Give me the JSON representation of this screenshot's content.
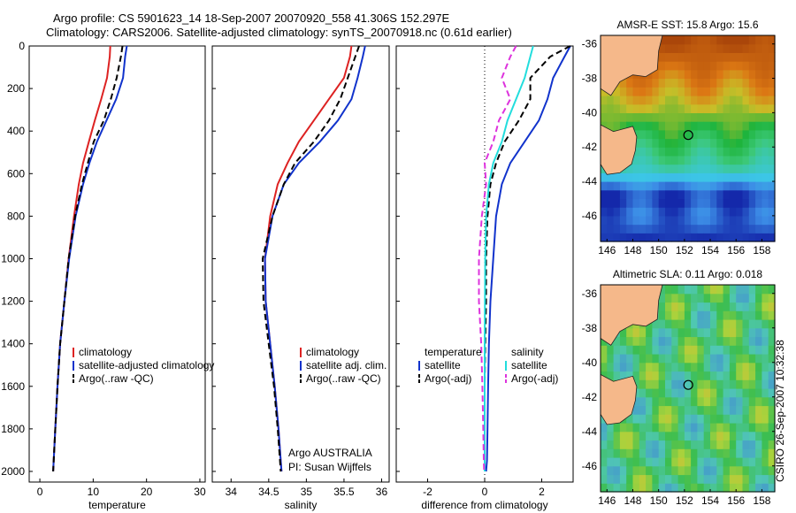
{
  "header": {
    "line1": "Argo profile: CS 5901623_14 18-Sep-2007 20070920_558 41.306S 152.297E",
    "line2": "Climatology: CARS2006. Satellite-adjusted climatology: synTS_20070918.nc (0.61d earlier)"
  },
  "stamp": "CSIRO 26-Sep-2007 10:32:38",
  "colors": {
    "climatology": "#dd2222",
    "satellite": "#1133cc",
    "argo": "#000000",
    "salinity_sat": "#22dddd",
    "salinity_argo": "#dd33dd",
    "land": "#f5b88a"
  },
  "chart_data": [
    {
      "type": "line",
      "xlabel": "temperature",
      "ylabel": "",
      "xlim": [
        -2,
        31
      ],
      "ylim": [
        2050,
        0
      ],
      "xticks": [
        0,
        10,
        20,
        30
      ],
      "yticks": [
        0,
        200,
        400,
        600,
        800,
        1000,
        1200,
        1400,
        1600,
        1800,
        2000
      ],
      "legend": [
        "climatology",
        "satellite-adjusted climatology",
        "Argo(..raw -QC)"
      ],
      "series": [
        {
          "name": "climatology",
          "style": "solid",
          "color": "#dd2222",
          "x": [
            13.2,
            13.1,
            12.6,
            11.5,
            10.3,
            9.2,
            8.1,
            7.3,
            6.4,
            5.4,
            4.6,
            3.8,
            3.3,
            2.9,
            2.6,
            2.5
          ],
          "y": [
            0,
            50,
            150,
            250,
            350,
            450,
            550,
            650,
            800,
            1000,
            1200,
            1400,
            1600,
            1800,
            1950,
            2000
          ]
        },
        {
          "name": "satellite-adjusted climatology",
          "style": "solid",
          "color": "#1133cc",
          "x": [
            16.3,
            16.0,
            15.6,
            14.3,
            12.5,
            10.7,
            9.3,
            8.1,
            6.7,
            5.5,
            4.6,
            3.8,
            3.3,
            2.9,
            2.6,
            2.5
          ],
          "y": [
            0,
            50,
            150,
            250,
            350,
            450,
            550,
            650,
            800,
            1000,
            1200,
            1400,
            1600,
            1800,
            1950,
            2000
          ]
        },
        {
          "name": "Argo(..raw -QC)",
          "style": "dashed",
          "color": "#000000",
          "x": [
            15.5,
            15.2,
            14.4,
            13.3,
            12.0,
            10.1,
            9.0,
            7.9,
            6.6,
            5.4,
            4.6,
            3.8,
            3.3,
            2.9,
            2.6,
            2.5
          ],
          "y": [
            0,
            50,
            150,
            250,
            350,
            450,
            550,
            650,
            800,
            1000,
            1200,
            1400,
            1600,
            1800,
            1950,
            2000
          ]
        }
      ]
    },
    {
      "type": "line",
      "xlabel": "salinity",
      "ylabel": "",
      "xlim": [
        33.75,
        36.1
      ],
      "ylim": [
        2050,
        0
      ],
      "xticks": [
        34,
        34.5,
        35,
        35.5,
        36
      ],
      "legend": [
        "climatology",
        "satellite adj. clim.",
        "Argo(..raw -QC)"
      ],
      "annotation": [
        "Argo AUSTRALIA",
        "PI: Susan Wijffels"
      ],
      "series": [
        {
          "name": "climatology",
          "style": "solid",
          "color": "#dd2222",
          "x": [
            35.6,
            35.58,
            35.5,
            35.3,
            35.1,
            34.9,
            34.75,
            34.62,
            34.52,
            34.45,
            34.46,
            34.52,
            34.58,
            34.63,
            34.66,
            34.67
          ],
          "y": [
            0,
            50,
            150,
            250,
            350,
            450,
            550,
            650,
            800,
            1000,
            1200,
            1400,
            1600,
            1800,
            1950,
            2000
          ]
        },
        {
          "name": "satellite adj. clim.",
          "style": "solid",
          "color": "#1133cc",
          "x": [
            35.78,
            35.75,
            35.68,
            35.6,
            35.42,
            35.18,
            34.9,
            34.7,
            34.55,
            34.45,
            34.46,
            34.52,
            34.58,
            34.63,
            34.66,
            34.67
          ],
          "y": [
            0,
            50,
            150,
            250,
            350,
            450,
            550,
            650,
            800,
            1000,
            1200,
            1400,
            1600,
            1800,
            1950,
            2000
          ]
        },
        {
          "name": "Argo(..raw -QC)",
          "style": "dashed",
          "color": "#000000",
          "x": [
            35.7,
            35.65,
            35.55,
            35.45,
            35.3,
            35.1,
            34.85,
            34.7,
            34.55,
            34.42,
            34.43,
            34.5,
            34.57,
            34.62,
            34.65,
            34.66
          ],
          "y": [
            0,
            50,
            150,
            250,
            350,
            450,
            550,
            650,
            800,
            1000,
            1200,
            1400,
            1600,
            1800,
            1950,
            2000
          ]
        }
      ]
    },
    {
      "type": "line",
      "xlabel": "difference from climatology",
      "ylabel": "",
      "xlim": [
        -3.1,
        3.1
      ],
      "ylim": [
        2050,
        0
      ],
      "xticks": [
        -2,
        0,
        2
      ],
      "legend_left_title": "temperature",
      "legend_right_title": "salinity",
      "legend": [
        "satellite",
        "Argo(-adj)",
        "satellite",
        "Argo(-adj)"
      ],
      "series": [
        {
          "name": "satellite",
          "group": "temperature",
          "style": "solid",
          "color": "#1133cc",
          "x": [
            3.0,
            2.8,
            2.4,
            2.2,
            1.9,
            1.4,
            0.9,
            0.6,
            0.4,
            0.3,
            0.2,
            0.15,
            0.12,
            0.1,
            0.08,
            0.05
          ],
          "y": [
            0,
            50,
            150,
            250,
            350,
            450,
            550,
            650,
            800,
            1000,
            1200,
            1400,
            1600,
            1800,
            1950,
            2000
          ]
        },
        {
          "name": "Argo(-adj)",
          "group": "temperature",
          "style": "dashed",
          "color": "#000000",
          "x": [
            3.0,
            2.3,
            1.6,
            1.6,
            1.2,
            0.7,
            0.4,
            0.2,
            0.1,
            0.05,
            0.05,
            0.02,
            0.0,
            0.0,
            0.0,
            0.0
          ],
          "y": [
            0,
            50,
            150,
            250,
            350,
            450,
            550,
            650,
            800,
            1000,
            1200,
            1400,
            1600,
            1800,
            1950,
            2000
          ]
        },
        {
          "name": "satellite",
          "group": "salinity",
          "style": "solid",
          "color": "#22dddd",
          "x": [
            1.7,
            1.6,
            1.4,
            1.1,
            0.8,
            0.6,
            0.3,
            0.15,
            0.05,
            0.02,
            0.01,
            0.0,
            0.0,
            0.0,
            0.0,
            0.0
          ],
          "y": [
            0,
            50,
            150,
            250,
            350,
            450,
            550,
            650,
            800,
            1000,
            1200,
            1400,
            1600,
            1800,
            1950,
            2000
          ]
        },
        {
          "name": "Argo(-adj)",
          "group": "salinity",
          "style": "dashed",
          "color": "#dd33dd",
          "x": [
            1.1,
            0.9,
            0.6,
            0.9,
            0.5,
            0.3,
            0.0,
            0.05,
            -0.1,
            -0.2,
            -0.2,
            -0.12,
            -0.08,
            -0.05,
            -0.03,
            -0.02
          ],
          "y": [
            0,
            50,
            150,
            250,
            350,
            450,
            550,
            650,
            800,
            1000,
            1200,
            1400,
            1600,
            1800,
            1950,
            2000
          ]
        }
      ]
    },
    {
      "type": "heatmap",
      "title": "AMSR-E SST: 15.8 Argo: 15.6",
      "xlim": [
        145.5,
        159
      ],
      "ylim": [
        -47.5,
        -35.5
      ],
      "xticks": [
        146,
        148,
        150,
        152,
        154,
        156,
        158
      ],
      "yticks": [
        -36,
        -38,
        -40,
        -42,
        -44,
        -46
      ],
      "marker": {
        "lon": 152.297,
        "lat": -41.306
      }
    },
    {
      "type": "heatmap",
      "title": "Altimetric SLA: 0.11 Argo: 0.018",
      "xlim": [
        145.5,
        159
      ],
      "ylim": [
        -47.5,
        -35.5
      ],
      "xticks": [
        146,
        148,
        150,
        152,
        154,
        156,
        158
      ],
      "yticks": [
        -36,
        -38,
        -40,
        -42,
        -44,
        -46
      ],
      "marker": {
        "lon": 152.297,
        "lat": -41.306
      }
    }
  ]
}
